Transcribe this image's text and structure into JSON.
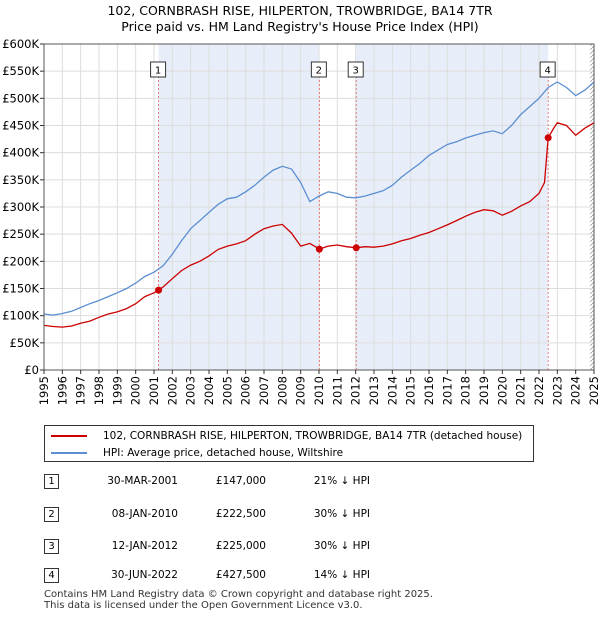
{
  "title_line1": "102, CORNBRASH RISE, HILPERTON, TROWBRIDGE, BA14 7TR",
  "title_line2": "Price paid vs. HM Land Registry's House Price Index (HPI)",
  "chart_data": {
    "type": "line",
    "title": "102, CORNBRASH RISE, HILPERTON, TROWBRIDGE, BA14 7TR — Price paid vs. HM Land Registry's House Price Index (HPI)",
    "xlabel": "",
    "ylabel": "",
    "xlim": [
      1995,
      2025
    ],
    "ylim": [
      0,
      600000
    ],
    "x_ticks": [
      "1995",
      "1996",
      "1997",
      "1998",
      "1999",
      "2000",
      "2001",
      "2002",
      "2003",
      "2004",
      "2005",
      "2006",
      "2007",
      "2008",
      "2009",
      "2010",
      "2011",
      "2012",
      "2013",
      "2014",
      "2015",
      "2016",
      "2017",
      "2018",
      "2019",
      "2020",
      "2021",
      "2022",
      "2023",
      "2024",
      "2025"
    ],
    "y_ticks": [
      {
        "value": 0,
        "label": "£0"
      },
      {
        "value": 50000,
        "label": "£50K"
      },
      {
        "value": 100000,
        "label": "£100K"
      },
      {
        "value": 150000,
        "label": "£150K"
      },
      {
        "value": 200000,
        "label": "£200K"
      },
      {
        "value": 250000,
        "label": "£250K"
      },
      {
        "value": 300000,
        "label": "£300K"
      },
      {
        "value": 350000,
        "label": "£350K"
      },
      {
        "value": 400000,
        "label": "£400K"
      },
      {
        "value": 450000,
        "label": "£450K"
      },
      {
        "value": 500000,
        "label": "£500K"
      },
      {
        "value": 550000,
        "label": "£550K"
      },
      {
        "value": 600000,
        "label": "£600K"
      }
    ],
    "grid": true,
    "shaded_periods": [
      [
        2001.25,
        2010.02
      ],
      [
        2012.03,
        2022.5
      ]
    ],
    "hatched_period": [
      2024.8,
      2025
    ],
    "series": [
      {
        "name": "102, CORNBRASH RISE, HILPERTON, TROWBRIDGE, BA14 7TR (detached house)",
        "color": "#cc0000",
        "x": [
          1995.0,
          1995.5,
          1996.0,
          1996.5,
          1997.0,
          1997.5,
          1998.0,
          1998.5,
          1999.0,
          1999.5,
          2000.0,
          2000.5,
          2001.0,
          2001.25,
          2001.5,
          2002.0,
          2002.5,
          2003.0,
          2003.5,
          2004.0,
          2004.5,
          2005.0,
          2005.5,
          2006.0,
          2006.5,
          2007.0,
          2007.5,
          2008.0,
          2008.5,
          2009.0,
          2009.5,
          2010.02,
          2010.5,
          2011.0,
          2011.5,
          2012.03,
          2012.5,
          2013.0,
          2013.5,
          2014.0,
          2014.5,
          2015.0,
          2015.5,
          2016.0,
          2016.5,
          2017.0,
          2017.5,
          2018.0,
          2018.5,
          2019.0,
          2019.5,
          2020.0,
          2020.5,
          2021.0,
          2021.5,
          2022.0,
          2022.3,
          2022.5,
          2022.8,
          2023.0,
          2023.5,
          2024.0,
          2024.5,
          2025.0
        ],
        "y": [
          82000,
          80000,
          79000,
          81000,
          86000,
          90000,
          97000,
          103000,
          107000,
          113000,
          122000,
          135000,
          142000,
          147000,
          153000,
          168000,
          183000,
          193000,
          200000,
          210000,
          222000,
          228000,
          232000,
          238000,
          250000,
          260000,
          265000,
          268000,
          252000,
          228000,
          233000,
          222500,
          228000,
          230000,
          227000,
          225000,
          227000,
          226000,
          228000,
          232000,
          238000,
          242000,
          248000,
          253000,
          260000,
          267000,
          275000,
          283000,
          290000,
          295000,
          293000,
          285000,
          292000,
          302000,
          310000,
          325000,
          345000,
          427500,
          445000,
          455000,
          450000,
          432000,
          445000,
          455000
        ]
      },
      {
        "name": "HPI: Average price, detached house, Wiltshire",
        "color": "#5b8fd1",
        "x": [
          1995.0,
          1995.5,
          1996.0,
          1996.5,
          1997.0,
          1997.5,
          1998.0,
          1998.5,
          1999.0,
          1999.5,
          2000.0,
          2000.5,
          2001.0,
          2001.5,
          2002.0,
          2002.5,
          2003.0,
          2003.5,
          2004.0,
          2004.5,
          2005.0,
          2005.5,
          2006.0,
          2006.5,
          2007.0,
          2007.5,
          2008.0,
          2008.5,
          2009.0,
          2009.5,
          2010.0,
          2010.5,
          2011.0,
          2011.5,
          2012.0,
          2012.5,
          2013.0,
          2013.5,
          2014.0,
          2014.5,
          2015.0,
          2015.5,
          2016.0,
          2016.5,
          2017.0,
          2017.5,
          2018.0,
          2018.5,
          2019.0,
          2019.5,
          2020.0,
          2020.5,
          2021.0,
          2021.5,
          2022.0,
          2022.5,
          2023.0,
          2023.5,
          2024.0,
          2024.5,
          2025.0
        ],
        "y": [
          103000,
          101000,
          104000,
          108000,
          115000,
          122000,
          128000,
          135000,
          142000,
          150000,
          160000,
          172000,
          180000,
          192000,
          213000,
          238000,
          260000,
          275000,
          290000,
          305000,
          315000,
          318000,
          328000,
          340000,
          355000,
          368000,
          375000,
          370000,
          345000,
          310000,
          320000,
          328000,
          325000,
          318000,
          317000,
          320000,
          325000,
          330000,
          340000,
          355000,
          368000,
          380000,
          395000,
          405000,
          415000,
          420000,
          427000,
          432000,
          437000,
          440000,
          435000,
          450000,
          470000,
          485000,
          500000,
          520000,
          530000,
          520000,
          505000,
          515000,
          530000
        ]
      }
    ],
    "sale_markers": [
      {
        "label": "1",
        "x": 2001.25,
        "y": 147000
      },
      {
        "label": "2",
        "x": 2010.02,
        "y": 222500
      },
      {
        "label": "3",
        "x": 2012.03,
        "y": 225000
      },
      {
        "label": "4",
        "x": 2022.5,
        "y": 427500
      }
    ]
  },
  "legend": [
    {
      "label": "102, CORNBRASH RISE, HILPERTON, TROWBRIDGE, BA14 7TR (detached house)",
      "color": "#cc0000"
    },
    {
      "label": "HPI: Average price, detached house, Wiltshire",
      "color": "#5b8fd1"
    }
  ],
  "sales": [
    {
      "num": "1",
      "date": "30-MAR-2001",
      "price": "£147,000",
      "hpi": "21% ↓ HPI"
    },
    {
      "num": "2",
      "date": "08-JAN-2010",
      "price": "£222,500",
      "hpi": "30% ↓ HPI"
    },
    {
      "num": "3",
      "date": "12-JAN-2012",
      "price": "£225,000",
      "hpi": "30% ↓ HPI"
    },
    {
      "num": "4",
      "date": "30-JUN-2022",
      "price": "£427,500",
      "hpi": "14% ↓ HPI"
    }
  ],
  "footer_line1": "Contains HM Land Registry data © Crown copyright and database right 2025.",
  "footer_line2": "This data is licensed under the Open Government Licence v3.0."
}
